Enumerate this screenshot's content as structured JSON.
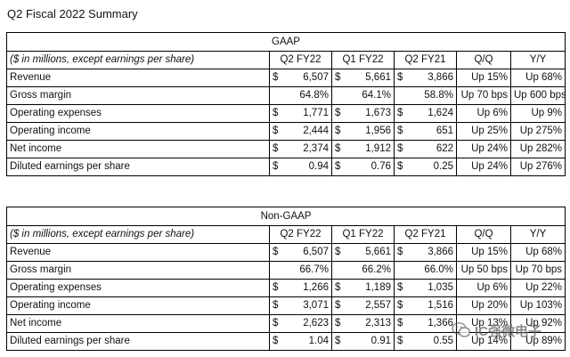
{
  "title": "Q2 Fiscal 2022 Summary",
  "gaap": {
    "section_label": "GAAP",
    "header": [
      "($ in millions, except earnings per share)",
      "Q2 FY22",
      "Q1 FY22",
      "Q2 FY21",
      "Q/Q",
      "Y/Y"
    ],
    "rows": [
      {
        "label": "Revenue",
        "dollar": true,
        "q2fy22": "6,507",
        "q1fy22": "5,661",
        "q2fy21": "3,866",
        "qq": "Up 15%",
        "yy": "Up 68%"
      },
      {
        "label": "Gross margin",
        "dollar": false,
        "q2fy22": "64.8%",
        "q1fy22": "64.1%",
        "q2fy21": "58.8%",
        "qq": "Up 70 bps",
        "yy": "Up 600 bps"
      },
      {
        "label": "Operating expenses",
        "dollar": true,
        "q2fy22": "1,771",
        "q1fy22": "1,673",
        "q2fy21": "1,624",
        "qq": "Up 6%",
        "yy": "Up 9%"
      },
      {
        "label": "Operating income",
        "dollar": true,
        "q2fy22": "2,444",
        "q1fy22": "1,956",
        "q2fy21": "651",
        "qq": "Up 25%",
        "yy": "Up 275%"
      },
      {
        "label": "Net income",
        "dollar": true,
        "q2fy22": "2,374",
        "q1fy22": "1,912",
        "q2fy21": "622",
        "qq": "Up 24%",
        "yy": "Up 282%"
      },
      {
        "label": "Diluted earnings per share",
        "dollar": true,
        "q2fy22": "0.94",
        "q1fy22": "0.76",
        "q2fy21": "0.25",
        "qq": "Up 24%",
        "yy": "Up 276%"
      }
    ]
  },
  "nongaap": {
    "section_label": "Non-GAAP",
    "header": [
      "($ in millions, except earnings per share)",
      "Q2 FY22",
      "Q1 FY22",
      "Q2 FY21",
      "Q/Q",
      "Y/Y"
    ],
    "rows": [
      {
        "label": "Revenue",
        "dollar": true,
        "q2fy22": "6,507",
        "q1fy22": "5,661",
        "q2fy21": "3,866",
        "qq": "Up 15%",
        "yy": "Up 68%"
      },
      {
        "label": "Gross margin",
        "dollar": false,
        "q2fy22": "66.7%",
        "q1fy22": "66.2%",
        "q2fy21": "66.0%",
        "qq": "Up 50 bps",
        "yy": "Up 70 bps"
      },
      {
        "label": "Operating expenses",
        "dollar": true,
        "q2fy22": "1,266",
        "q1fy22": "1,189",
        "q2fy21": "1,035",
        "qq": "Up 6%",
        "yy": "Up 22%"
      },
      {
        "label": "Operating income",
        "dollar": true,
        "q2fy22": "3,071",
        "q1fy22": "2,557",
        "q2fy21": "1,516",
        "qq": "Up 20%",
        "yy": "Up 103%"
      },
      {
        "label": "Net income",
        "dollar": true,
        "q2fy22": "2,623",
        "q1fy22": "2,313",
        "q2fy21": "1,366",
        "qq": "Up 13%",
        "yy": "Up 92%"
      },
      {
        "label": "Diluted earnings per share",
        "dollar": true,
        "q2fy22": "1.04",
        "q1fy22": "0.91",
        "q2fy21": "0.55",
        "qq": "Up 14%",
        "yy": "Up 89%"
      }
    ]
  },
  "watermark": {
    "text": "IC强微电子",
    "icon": "wechat-icon"
  }
}
